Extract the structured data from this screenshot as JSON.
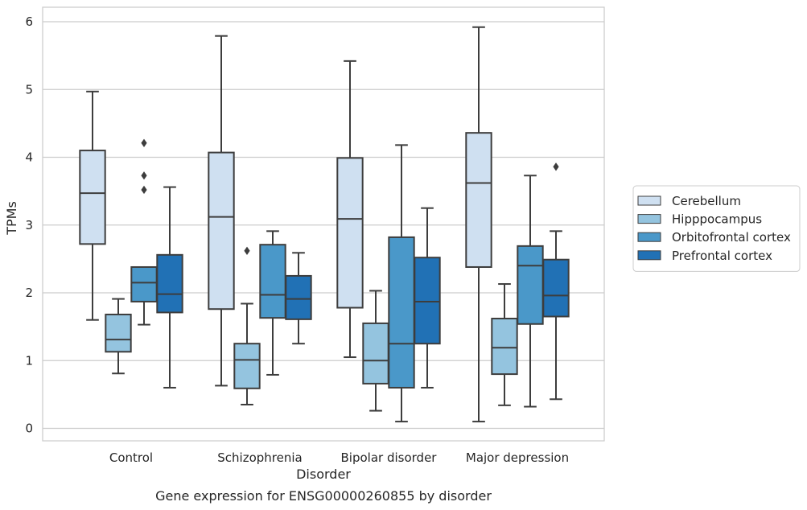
{
  "chart_data": {
    "type": "box",
    "caption": "Gene expression for ENSG00000260855 by disorder",
    "xlabel": "Disorder",
    "ylabel": "TPMs",
    "ylim": [
      -0.18,
      6.22
    ],
    "yticks": [
      0,
      1,
      2,
      3,
      4,
      5,
      6
    ],
    "grid": true,
    "legend_position": "right",
    "categories": [
      "Control",
      "Schizophrenia",
      "Bipolar disorder",
      "Major depression"
    ],
    "series": [
      {
        "name": "Cerebellum",
        "color": "#cfe0f1",
        "boxes": [
          {
            "whisker_low": 1.6,
            "q1": 2.72,
            "median": 3.47,
            "q3": 4.1,
            "whisker_high": 4.97,
            "outliers": []
          },
          {
            "whisker_low": 0.63,
            "q1": 1.76,
            "median": 3.12,
            "q3": 4.07,
            "whisker_high": 5.79,
            "outliers": []
          },
          {
            "whisker_low": 1.05,
            "q1": 1.78,
            "median": 3.09,
            "q3": 3.99,
            "whisker_high": 5.42,
            "outliers": []
          },
          {
            "whisker_low": 0.1,
            "q1": 2.38,
            "median": 3.62,
            "q3": 4.36,
            "whisker_high": 5.92,
            "outliers": []
          }
        ]
      },
      {
        "name": "Hipppocampus",
        "color": "#94c4df",
        "boxes": [
          {
            "whisker_low": 0.81,
            "q1": 1.13,
            "median": 1.31,
            "q3": 1.68,
            "whisker_high": 1.91,
            "outliers": []
          },
          {
            "whisker_low": 0.35,
            "q1": 0.59,
            "median": 1.01,
            "q3": 1.25,
            "whisker_high": 1.84,
            "outliers": [
              2.62
            ]
          },
          {
            "whisker_low": 0.26,
            "q1": 0.66,
            "median": 1.0,
            "q3": 1.55,
            "whisker_high": 2.03,
            "outliers": []
          },
          {
            "whisker_low": 0.34,
            "q1": 0.8,
            "median": 1.19,
            "q3": 1.62,
            "whisker_high": 2.13,
            "outliers": []
          }
        ]
      },
      {
        "name": "Orbitofrontal cortex",
        "color": "#4a98c9",
        "boxes": [
          {
            "whisker_low": 1.53,
            "q1": 1.87,
            "median": 2.15,
            "q3": 2.38,
            "whisker_high": 2.38,
            "outliers": [
              3.52,
              3.73,
              4.21
            ]
          },
          {
            "whisker_low": 0.79,
            "q1": 1.63,
            "median": 1.97,
            "q3": 2.71,
            "whisker_high": 2.91,
            "outliers": []
          },
          {
            "whisker_low": 0.1,
            "q1": 0.6,
            "median": 1.25,
            "q3": 2.82,
            "whisker_high": 4.18,
            "outliers": []
          },
          {
            "whisker_low": 0.32,
            "q1": 1.54,
            "median": 2.4,
            "q3": 2.69,
            "whisker_high": 3.73,
            "outliers": []
          }
        ]
      },
      {
        "name": "Prefrontal cortex",
        "color": "#2171b5",
        "boxes": [
          {
            "whisker_low": 0.6,
            "q1": 1.71,
            "median": 1.98,
            "q3": 2.56,
            "whisker_high": 3.56,
            "outliers": []
          },
          {
            "whisker_low": 1.25,
            "q1": 1.61,
            "median": 1.91,
            "q3": 2.25,
            "whisker_high": 2.59,
            "outliers": []
          },
          {
            "whisker_low": 0.6,
            "q1": 1.25,
            "median": 1.87,
            "q3": 2.52,
            "whisker_high": 3.25,
            "outliers": []
          },
          {
            "whisker_low": 0.43,
            "q1": 1.65,
            "median": 1.96,
            "q3": 2.49,
            "whisker_high": 2.91,
            "outliers": [
              3.86
            ]
          }
        ]
      }
    ]
  }
}
